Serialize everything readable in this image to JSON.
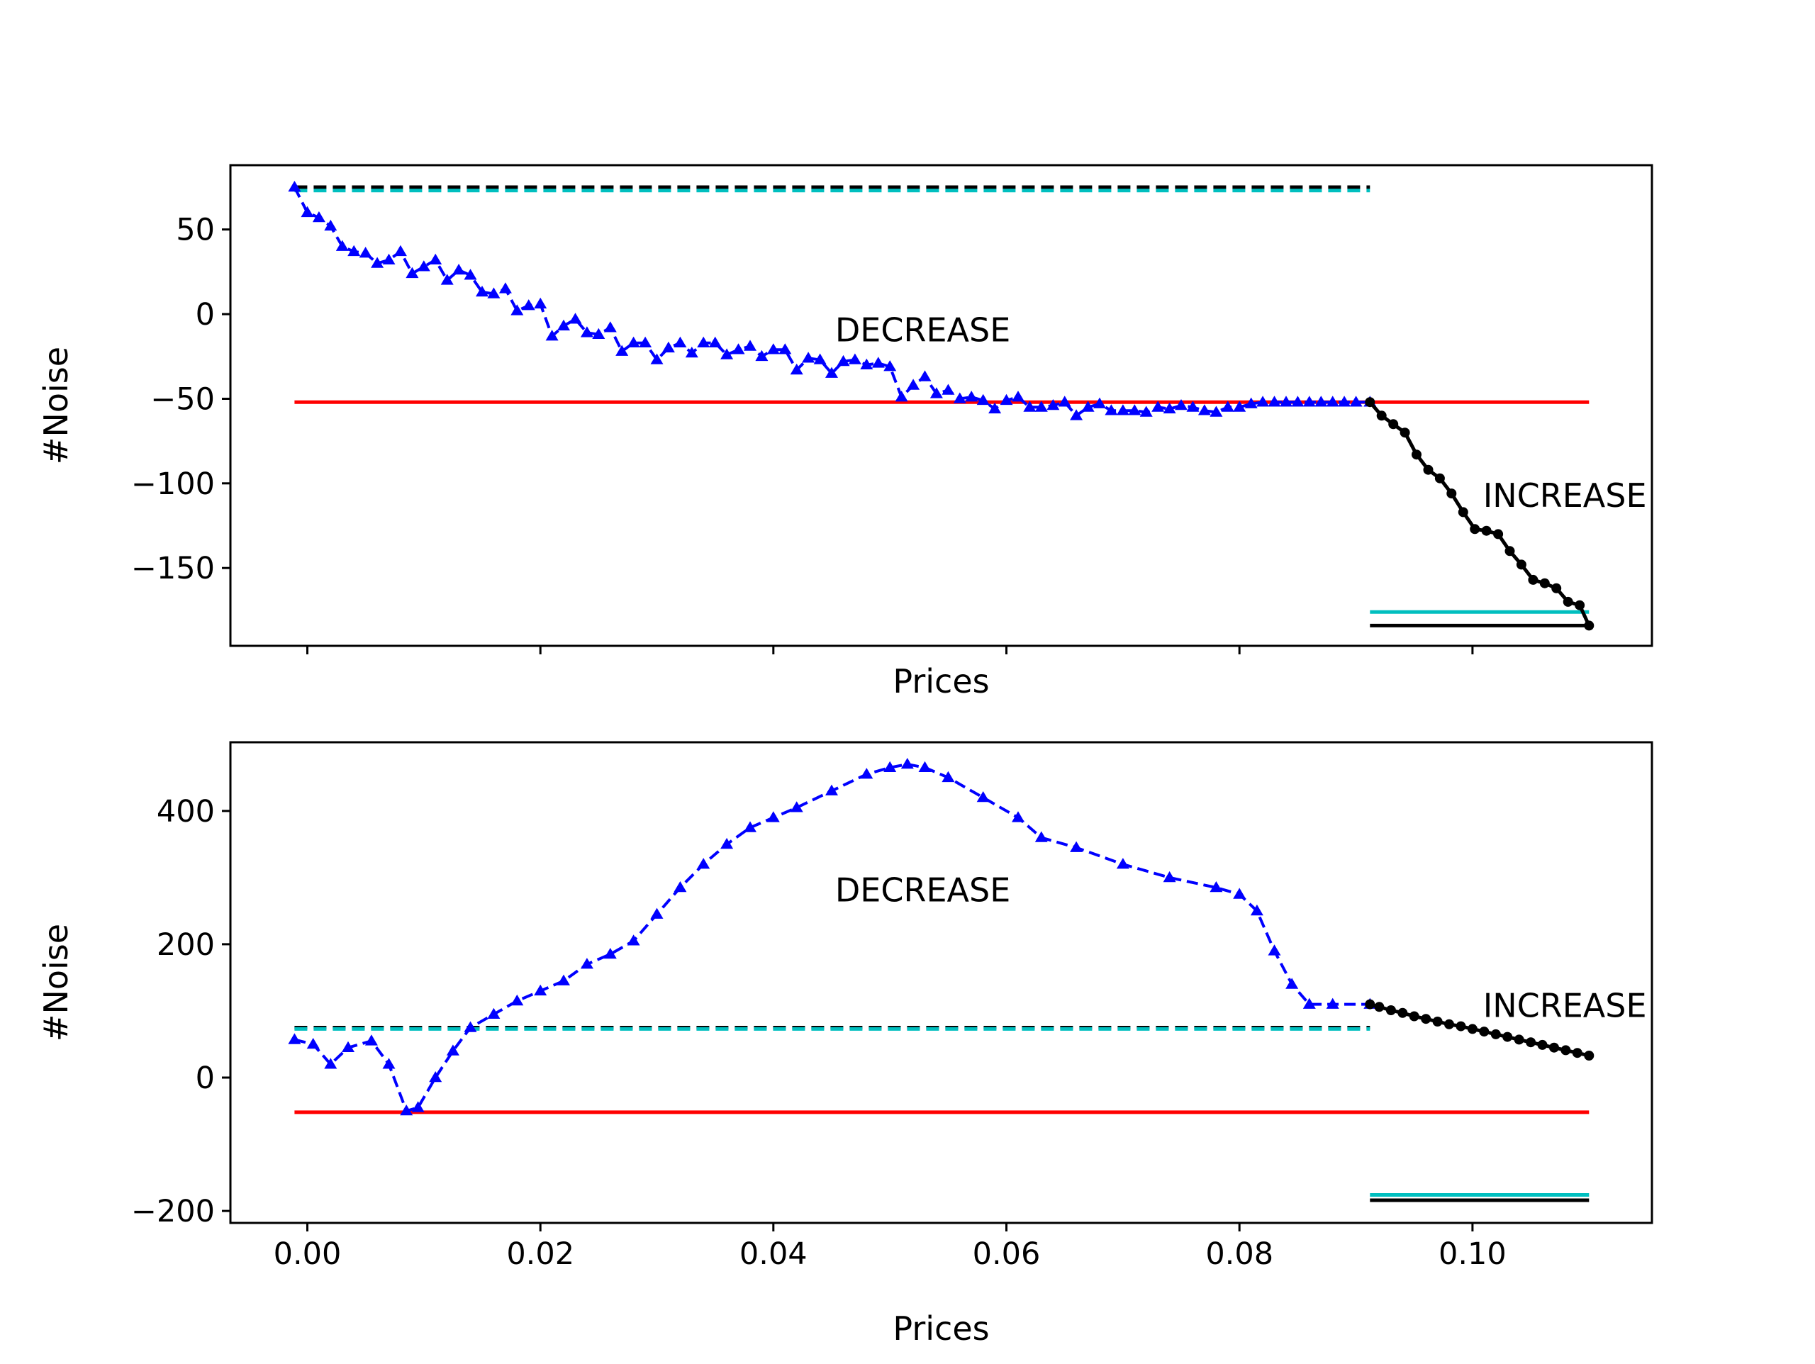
{
  "chart_data": [
    {
      "type": "line",
      "xlabel": "Prices",
      "ylabel": "#Noise",
      "xlim": [
        -0.0066,
        0.1154
      ],
      "ylim": [
        -196,
        88
      ],
      "yticks": [
        -150,
        -100,
        -50,
        0,
        50
      ],
      "ytick_labels": [
        "−150",
        "−100",
        "−50",
        "0",
        "50"
      ],
      "xticks": [
        0.0,
        0.02,
        0.04,
        0.06,
        0.08,
        0.1
      ],
      "show_xtick_labels": false,
      "annotations": [
        {
          "text": "DECREASE",
          "x": 0.0453,
          "y": -16
        },
        {
          "text": "INCREASE",
          "x": 0.1009,
          "y": -114
        }
      ],
      "hlines": [
        {
          "y": 75,
          "xmin": -0.0011,
          "xmax": 0.0912,
          "color": "#000000",
          "style": "dashed"
        },
        {
          "y": 73,
          "xmin": -0.0011,
          "xmax": 0.0912,
          "color": "#00bfbf",
          "style": "dashed"
        },
        {
          "y": -52,
          "xmin": -0.0011,
          "xmax": 0.11,
          "color": "#ff0000",
          "style": "solid"
        },
        {
          "y": -176,
          "xmin": 0.0912,
          "xmax": 0.11,
          "color": "#00bfbf",
          "style": "solid"
        },
        {
          "y": -184,
          "xmin": 0.0912,
          "xmax": 0.11,
          "color": "#000000",
          "style": "solid"
        }
      ],
      "series": [
        {
          "color": "#0000ff",
          "style": "dashed",
          "marker": "triangle",
          "x": [
            -0.0011,
            0.0,
            0.001,
            0.002,
            0.003,
            0.004,
            0.005,
            0.006,
            0.007,
            0.008,
            0.009,
            0.01,
            0.011,
            0.012,
            0.013,
            0.014,
            0.015,
            0.016,
            0.017,
            0.018,
            0.019,
            0.02,
            0.021,
            0.022,
            0.023,
            0.024,
            0.025,
            0.026,
            0.027,
            0.028,
            0.029,
            0.03,
            0.031,
            0.032,
            0.033,
            0.034,
            0.035,
            0.036,
            0.037,
            0.038,
            0.039,
            0.04,
            0.041,
            0.042,
            0.043,
            0.044,
            0.045,
            0.046,
            0.047,
            0.048,
            0.049,
            0.05,
            0.051,
            0.052,
            0.053,
            0.054,
            0.055,
            0.056,
            0.057,
            0.058,
            0.059,
            0.06,
            0.061,
            0.062,
            0.063,
            0.064,
            0.065,
            0.066,
            0.067,
            0.068,
            0.069,
            0.07,
            0.071,
            0.072,
            0.073,
            0.074,
            0.075,
            0.076,
            0.077,
            0.078,
            0.079,
            0.08,
            0.081,
            0.082,
            0.083,
            0.084,
            0.085,
            0.086,
            0.087,
            0.088,
            0.089,
            0.09,
            0.0912
          ],
          "y": [
            75,
            60,
            57,
            52,
            40,
            37,
            36,
            30,
            32,
            37,
            24,
            28,
            32,
            20,
            26,
            23,
            13,
            12,
            15,
            2,
            5,
            6,
            -13,
            -7,
            -3,
            -11,
            -12,
            -8,
            -22,
            -17,
            -17,
            -27,
            -20,
            -17,
            -23,
            -17,
            -17,
            -24,
            -21,
            -19,
            -25,
            -21,
            -21,
            -33,
            -26,
            -27,
            -35,
            -28,
            -27,
            -30,
            -29,
            -31,
            -49,
            -42,
            -37,
            -47,
            -45,
            -50,
            -49,
            -51,
            -56,
            -51,
            -49,
            -55,
            -55,
            -54,
            -52,
            -60,
            -55,
            -53,
            -57,
            -57,
            -57,
            -58,
            -55,
            -56,
            -54,
            -55,
            -57,
            -58,
            -55,
            -55,
            -53,
            -52,
            -52,
            -52,
            -52,
            -52,
            -52,
            -52,
            -52,
            -52,
            -52
          ]
        },
        {
          "color": "#000000",
          "style": "solid",
          "marker": "dot",
          "x": [
            0.0912,
            0.0922,
            0.0932,
            0.0942,
            0.0952,
            0.0962,
            0.0972,
            0.0982,
            0.0992,
            0.1002,
            0.1012,
            0.1022,
            0.1032,
            0.1042,
            0.1052,
            0.1062,
            0.1072,
            0.1082,
            0.1092,
            0.11
          ],
          "y": [
            -52,
            -60,
            -65,
            -70,
            -83,
            -92,
            -97,
            -106,
            -117,
            -127,
            -128,
            -130,
            -140,
            -148,
            -157,
            -159,
            -162,
            -170,
            -172,
            -184
          ]
        }
      ]
    },
    {
      "type": "line",
      "xlabel": "Prices",
      "ylabel": "#Noise",
      "xlim": [
        -0.0066,
        0.1154
      ],
      "ylim": [
        -218,
        503
      ],
      "yticks": [
        -200,
        0,
        200,
        400
      ],
      "ytick_labels": [
        "−200",
        "0",
        "200",
        "400"
      ],
      "xticks": [
        0.0,
        0.02,
        0.04,
        0.06,
        0.08,
        0.1
      ],
      "xtick_labels": [
        "0.00",
        "0.02",
        "0.04",
        "0.06",
        "0.08",
        "0.10"
      ],
      "show_xtick_labels": true,
      "annotations": [
        {
          "text": "DECREASE",
          "x": 0.0453,
          "y": 264
        },
        {
          "text": "INCREASE",
          "x": 0.1009,
          "y": 91
        }
      ],
      "hlines": [
        {
          "y": 75,
          "xmin": -0.0011,
          "xmax": 0.0912,
          "color": "#000000",
          "style": "dashed"
        },
        {
          "y": 73,
          "xmin": -0.0011,
          "xmax": 0.0912,
          "color": "#00bfbf",
          "style": "dashed"
        },
        {
          "y": -52,
          "xmin": -0.0011,
          "xmax": 0.11,
          "color": "#ff0000",
          "style": "solid"
        },
        {
          "y": -176,
          "xmin": 0.0912,
          "xmax": 0.11,
          "color": "#00bfbf",
          "style": "solid"
        },
        {
          "y": -184,
          "xmin": 0.0912,
          "xmax": 0.11,
          "color": "#000000",
          "style": "solid"
        }
      ],
      "series": [
        {
          "color": "#0000ff",
          "style": "dashed",
          "marker": "triangle",
          "x": [
            -0.0011,
            0.0005,
            0.002,
            0.0035,
            0.0055,
            0.007,
            0.0085,
            0.0095,
            0.011,
            0.0125,
            0.014,
            0.016,
            0.018,
            0.02,
            0.022,
            0.024,
            0.026,
            0.028,
            0.03,
            0.032,
            0.034,
            0.036,
            0.038,
            0.04,
            0.042,
            0.045,
            0.048,
            0.05,
            0.0515,
            0.053,
            0.055,
            0.058,
            0.061,
            0.063,
            0.066,
            0.07,
            0.074,
            0.078,
            0.08,
            0.0815,
            0.083,
            0.0845,
            0.086,
            0.088,
            0.0912
          ],
          "y": [
            57,
            50,
            20,
            45,
            55,
            20,
            -50,
            -45,
            0,
            40,
            75,
            95,
            115,
            130,
            145,
            170,
            185,
            205,
            245,
            285,
            320,
            350,
            375,
            390,
            405,
            430,
            455,
            465,
            470,
            465,
            450,
            420,
            390,
            360,
            345,
            320,
            300,
            285,
            275,
            250,
            190,
            140,
            110,
            110,
            110
          ]
        },
        {
          "color": "#000000",
          "style": "solid",
          "marker": "dot",
          "x": [
            0.0912,
            0.092,
            0.093,
            0.094,
            0.095,
            0.096,
            0.097,
            0.098,
            0.099,
            0.1,
            0.101,
            0.102,
            0.103,
            0.104,
            0.105,
            0.106,
            0.107,
            0.108,
            0.109,
            0.11
          ],
          "y": [
            110,
            106,
            101,
            97,
            92,
            88,
            84,
            80,
            77,
            73,
            69,
            65,
            61,
            57,
            53,
            49,
            45,
            41,
            37,
            33
          ]
        }
      ]
    }
  ]
}
